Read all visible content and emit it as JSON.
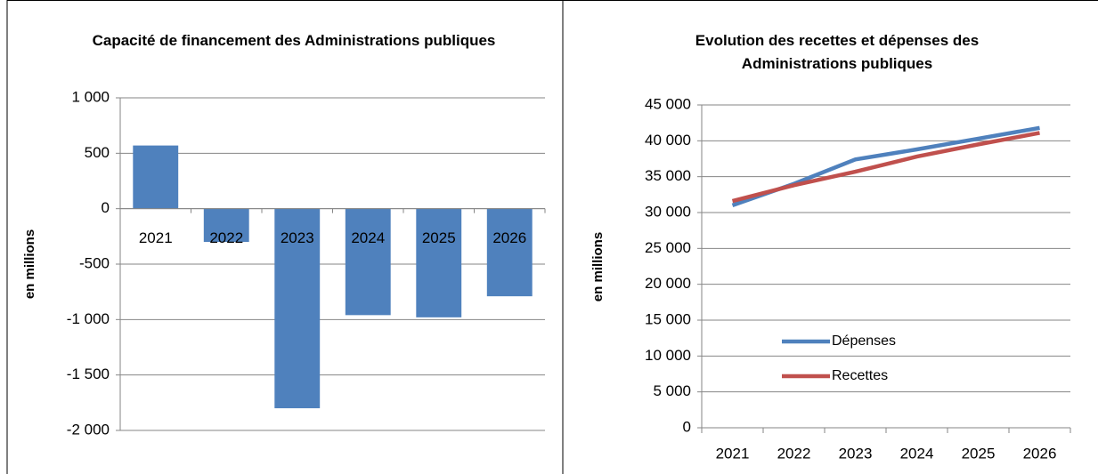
{
  "chart_data": [
    {
      "type": "bar",
      "title": "Capacité de financement des Administrations publiques",
      "ylabel": "en millions",
      "categories": [
        "2021",
        "2022",
        "2023",
        "2024",
        "2025",
        "2026"
      ],
      "values": [
        570,
        -300,
        -1800,
        -960,
        -980,
        -790
      ],
      "color": "#4f81bd",
      "ylim": [
        -2000,
        1000
      ],
      "yticks": [
        {
          "value": 1000,
          "label": "1 000"
        },
        500,
        0,
        -500,
        {
          "value": -1000,
          "label": "-1 000"
        },
        {
          "value": -1500,
          "label": "-1 500"
        },
        {
          "value": -2000,
          "label": "-2 000"
        }
      ],
      "grid": true
    },
    {
      "type": "line",
      "title": "Evolution des recettes et dépenses des Administrations publiques",
      "ylabel": "en millions",
      "categories": [
        "2021",
        "2022",
        "2023",
        "2024",
        "2025",
        "2026"
      ],
      "series": [
        {
          "name": "Dépenses",
          "color": "#4f81bd",
          "values": [
            31000,
            34000,
            37400,
            38800,
            40300,
            41800
          ]
        },
        {
          "name": "Recettes",
          "color": "#c0504d",
          "values": [
            31600,
            33800,
            35700,
            37800,
            39500,
            41100
          ]
        }
      ],
      "ylim": [
        0,
        45000
      ],
      "yticks": [
        0,
        {
          "value": 5000,
          "label": "5 000"
        },
        {
          "value": 10000,
          "label": "10 000"
        },
        {
          "value": 15000,
          "label": "15 000"
        },
        {
          "value": 20000,
          "label": "20 000"
        },
        {
          "value": 25000,
          "label": "25 000"
        },
        {
          "value": 30000,
          "label": "30 000"
        },
        {
          "value": 35000,
          "label": "35 000"
        },
        {
          "value": 40000,
          "label": "40 000"
        },
        {
          "value": 45000,
          "label": "45 000"
        }
      ],
      "grid": true,
      "legend": "left"
    }
  ]
}
